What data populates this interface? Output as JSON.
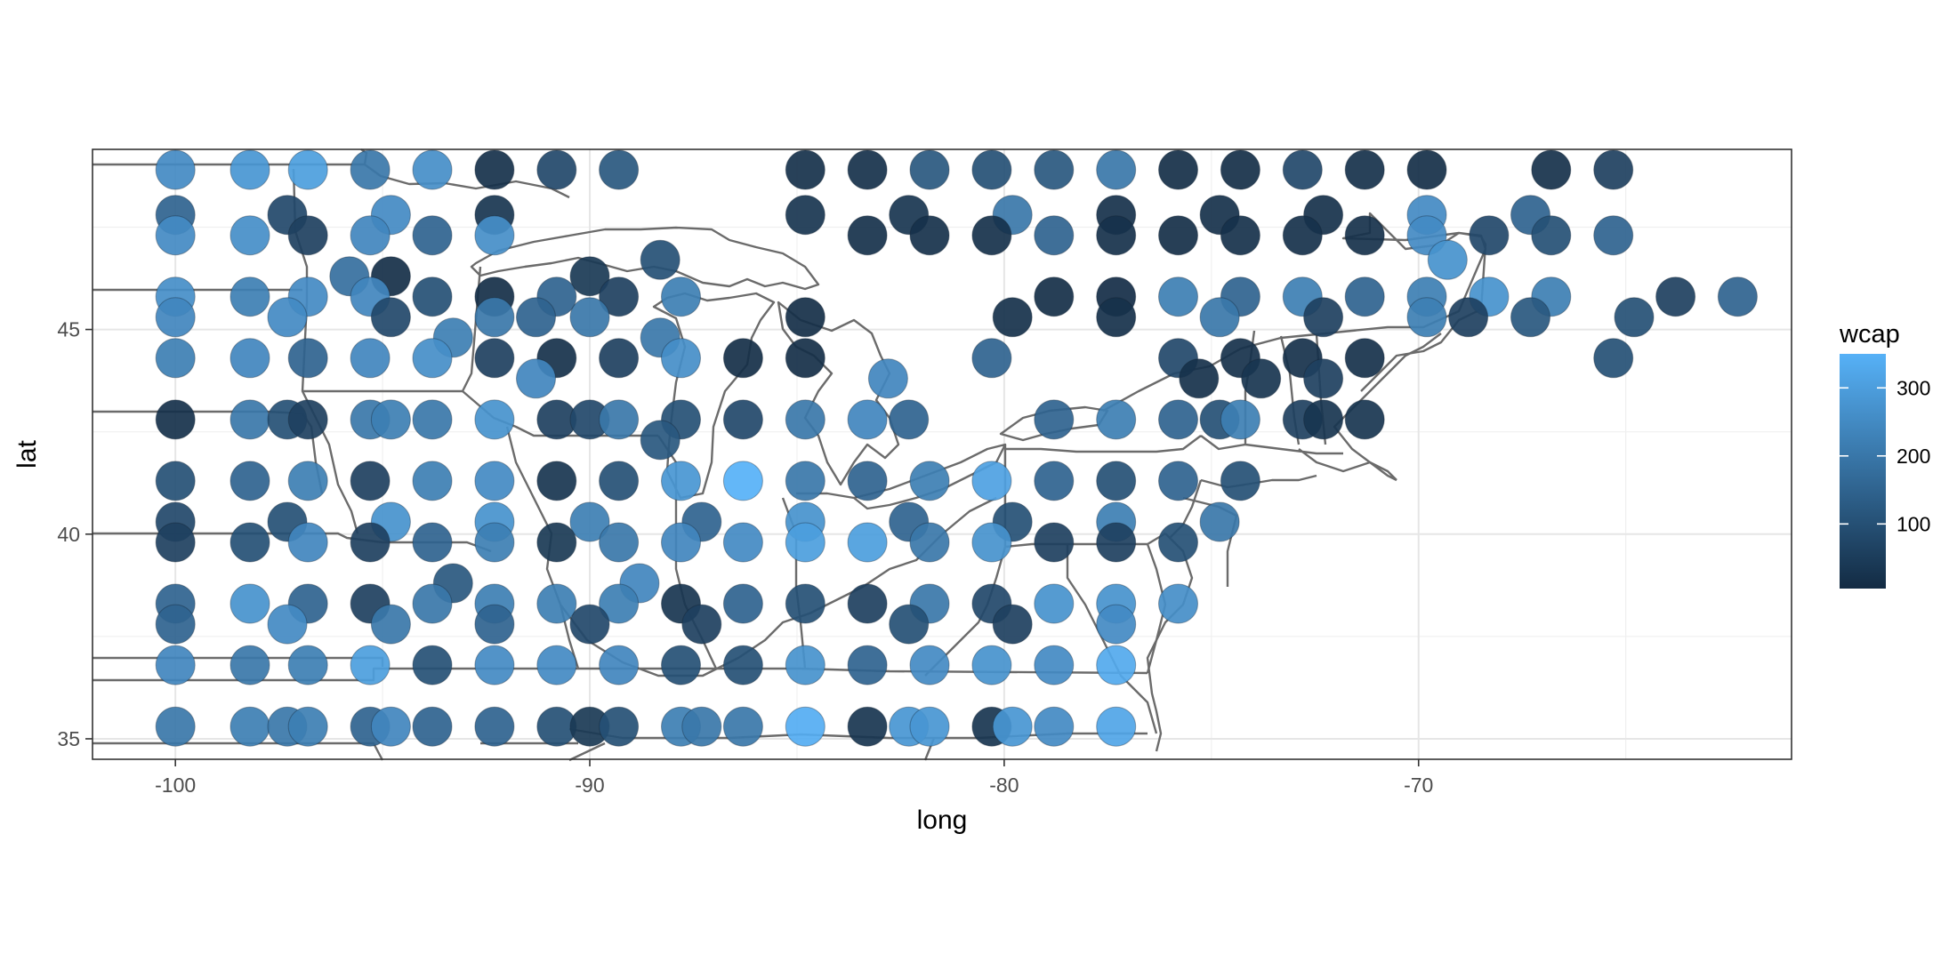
{
  "chart_data": {
    "type": "scatter",
    "title": "",
    "xlabel": "long",
    "ylabel": "lat",
    "xlim": [
      -102,
      -61
    ],
    "ylim": [
      34.5,
      49.4
    ],
    "x_ticks": [
      -100,
      -90,
      -80,
      -70
    ],
    "x_tick_labels": [
      "-100",
      "-90",
      "-80",
      "-70"
    ],
    "y_ticks": [
      35,
      40,
      45
    ],
    "y_tick_labels": [
      "35",
      "40",
      "45"
    ],
    "grid": true,
    "legend": {
      "title": "wcap",
      "position": "right",
      "type": "colorbar",
      "range": [
        5,
        350
      ],
      "ticks": [
        100,
        200,
        300
      ],
      "tick_labels": [
        "100",
        "200",
        "300"
      ],
      "color_low": "#132B43",
      "color_high": "#56B1F7"
    },
    "point_columns": [
      "long",
      "lat",
      "wcap"
    ],
    "points": [
      [
        -100.0,
        48.9,
        250
      ],
      [
        -98.2,
        48.9,
        280
      ],
      [
        -96.8,
        48.9,
        300
      ],
      [
        -95.3,
        48.9,
        200
      ],
      [
        -93.8,
        48.9,
        260
      ],
      [
        -92.3,
        48.9,
        20
      ],
      [
        -90.8,
        48.9,
        80
      ],
      [
        -89.3,
        48.9,
        120
      ],
      [
        -84.8,
        48.9,
        20
      ],
      [
        -83.3,
        48.9,
        20
      ],
      [
        -81.8,
        48.9,
        120
      ],
      [
        -80.3,
        48.9,
        100
      ],
      [
        -78.8,
        48.9,
        120
      ],
      [
        -77.3,
        48.9,
        200
      ],
      [
        -75.8,
        48.9,
        15
      ],
      [
        -74.3,
        48.9,
        15
      ],
      [
        -72.8,
        48.9,
        80
      ],
      [
        -71.3,
        48.9,
        20
      ],
      [
        -69.8,
        48.9,
        15
      ],
      [
        -66.8,
        48.9,
        20
      ],
      [
        -65.3,
        48.9,
        60
      ],
      [
        -100.0,
        47.8,
        150
      ],
      [
        -97.3,
        47.8,
        80
      ],
      [
        -94.8,
        47.8,
        250
      ],
      [
        -92.3,
        47.8,
        30
      ],
      [
        -84.8,
        47.8,
        30
      ],
      [
        -82.3,
        47.8,
        30
      ],
      [
        -79.8,
        47.8,
        200
      ],
      [
        -77.3,
        47.8,
        20
      ],
      [
        -74.8,
        47.8,
        20
      ],
      [
        -72.3,
        47.8,
        20
      ],
      [
        -69.8,
        47.8,
        250
      ],
      [
        -67.3,
        47.8,
        150
      ],
      [
        -100.0,
        47.3,
        250
      ],
      [
        -98.2,
        47.3,
        260
      ],
      [
        -96.8,
        47.3,
        60
      ],
      [
        -95.3,
        47.3,
        240
      ],
      [
        -93.8,
        47.3,
        150
      ],
      [
        -92.3,
        47.3,
        260
      ],
      [
        -83.3,
        47.3,
        20
      ],
      [
        -81.8,
        47.3,
        20
      ],
      [
        -80.3,
        47.3,
        20
      ],
      [
        -78.8,
        47.3,
        150
      ],
      [
        -77.3,
        47.3,
        20
      ],
      [
        -75.8,
        47.3,
        15
      ],
      [
        -74.3,
        47.3,
        20
      ],
      [
        -72.8,
        47.3,
        20
      ],
      [
        -71.3,
        47.3,
        20
      ],
      [
        -69.8,
        47.3,
        250
      ],
      [
        -68.3,
        47.3,
        80
      ],
      [
        -66.8,
        47.3,
        100
      ],
      [
        -65.3,
        47.3,
        150
      ],
      [
        -88.3,
        46.7,
        100
      ],
      [
        -69.3,
        46.7,
        270
      ],
      [
        -95.8,
        46.3,
        180
      ],
      [
        -94.8,
        46.3,
        15
      ],
      [
        -90.0,
        46.3,
        40
      ],
      [
        -100.0,
        45.8,
        260
      ],
      [
        -98.2,
        45.8,
        220
      ],
      [
        -96.8,
        45.8,
        250
      ],
      [
        -95.3,
        45.8,
        240
      ],
      [
        -93.8,
        45.8,
        100
      ],
      [
        -92.3,
        45.8,
        15
      ],
      [
        -90.8,
        45.8,
        150
      ],
      [
        -89.3,
        45.8,
        60
      ],
      [
        -87.8,
        45.8,
        220
      ],
      [
        -78.8,
        45.8,
        15
      ],
      [
        -77.3,
        45.8,
        10
      ],
      [
        -75.8,
        45.8,
        220
      ],
      [
        -74.3,
        45.8,
        150
      ],
      [
        -72.8,
        45.8,
        220
      ],
      [
        -71.3,
        45.8,
        150
      ],
      [
        -69.8,
        45.8,
        220
      ],
      [
        -68.3,
        45.8,
        270
      ],
      [
        -66.8,
        45.8,
        220
      ],
      [
        -63.8,
        45.8,
        60
      ],
      [
        -62.3,
        45.8,
        150
      ],
      [
        -100.0,
        45.3,
        240
      ],
      [
        -97.3,
        45.3,
        250
      ],
      [
        -94.8,
        45.3,
        80
      ],
      [
        -92.3,
        45.3,
        200
      ],
      [
        -91.3,
        45.3,
        150
      ],
      [
        -90.0,
        45.3,
        200
      ],
      [
        -84.8,
        45.3,
        15
      ],
      [
        -79.8,
        45.3,
        20
      ],
      [
        -77.3,
        45.3,
        20
      ],
      [
        -74.8,
        45.3,
        200
      ],
      [
        -72.3,
        45.3,
        60
      ],
      [
        -69.8,
        45.3,
        220
      ],
      [
        -68.8,
        45.3,
        60
      ],
      [
        -67.3,
        45.3,
        120
      ],
      [
        -64.8,
        45.3,
        100
      ],
      [
        -93.3,
        44.8,
        220
      ],
      [
        -88.3,
        44.8,
        200
      ],
      [
        -100.0,
        44.3,
        220
      ],
      [
        -98.2,
        44.3,
        240
      ],
      [
        -96.8,
        44.3,
        150
      ],
      [
        -95.3,
        44.3,
        240
      ],
      [
        -93.8,
        44.3,
        260
      ],
      [
        -92.3,
        44.3,
        60
      ],
      [
        -90.8,
        44.3,
        20
      ],
      [
        -89.3,
        44.3,
        60
      ],
      [
        -87.8,
        44.3,
        260
      ],
      [
        -86.3,
        44.3,
        15
      ],
      [
        -84.8,
        44.3,
        15
      ],
      [
        -80.3,
        44.3,
        150
      ],
      [
        -75.8,
        44.3,
        80
      ],
      [
        -74.3,
        44.3,
        20
      ],
      [
        -72.8,
        44.3,
        20
      ],
      [
        -71.3,
        44.3,
        20
      ],
      [
        -65.3,
        44.3,
        100
      ],
      [
        -91.3,
        43.8,
        240
      ],
      [
        -82.8,
        43.8,
        240
      ],
      [
        -75.3,
        43.8,
        20
      ],
      [
        -73.8,
        43.8,
        30
      ],
      [
        -72.3,
        43.8,
        60
      ],
      [
        -100.0,
        42.8,
        20
      ],
      [
        -98.2,
        42.8,
        200
      ],
      [
        -97.3,
        42.8,
        100
      ],
      [
        -96.8,
        42.8,
        60
      ],
      [
        -95.3,
        42.8,
        200
      ],
      [
        -94.8,
        42.8,
        220
      ],
      [
        -93.8,
        42.8,
        200
      ],
      [
        -92.3,
        42.8,
        270
      ],
      [
        -90.8,
        42.8,
        60
      ],
      [
        -90.0,
        42.8,
        80
      ],
      [
        -89.3,
        42.8,
        200
      ],
      [
        -87.8,
        42.8,
        100
      ],
      [
        -86.3,
        42.8,
        80
      ],
      [
        -84.8,
        42.8,
        200
      ],
      [
        -83.3,
        42.8,
        240
      ],
      [
        -82.3,
        42.8,
        150
      ],
      [
        -78.8,
        42.8,
        150
      ],
      [
        -77.3,
        42.8,
        220
      ],
      [
        -75.8,
        42.8,
        150
      ],
      [
        -74.8,
        42.8,
        100
      ],
      [
        -74.3,
        42.8,
        220
      ],
      [
        -72.8,
        42.8,
        60
      ],
      [
        -72.3,
        42.8,
        30
      ],
      [
        -71.3,
        42.8,
        30
      ],
      [
        -88.3,
        42.3,
        120
      ],
      [
        -100.0,
        41.3,
        100
      ],
      [
        -98.2,
        41.3,
        150
      ],
      [
        -96.8,
        41.3,
        220
      ],
      [
        -95.3,
        41.3,
        60
      ],
      [
        -93.8,
        41.3,
        220
      ],
      [
        -92.3,
        41.3,
        250
      ],
      [
        -90.8,
        41.3,
        30
      ],
      [
        -89.3,
        41.3,
        100
      ],
      [
        -87.8,
        41.3,
        280
      ],
      [
        -86.3,
        41.3,
        350
      ],
      [
        -84.8,
        41.3,
        200
      ],
      [
        -83.3,
        41.3,
        150
      ],
      [
        -81.8,
        41.3,
        220
      ],
      [
        -80.3,
        41.3,
        310
      ],
      [
        -78.8,
        41.3,
        150
      ],
      [
        -77.3,
        41.3,
        100
      ],
      [
        -75.8,
        41.3,
        150
      ],
      [
        -74.3,
        41.3,
        100
      ],
      [
        -100.0,
        40.3,
        80
      ],
      [
        -97.3,
        40.3,
        100
      ],
      [
        -94.8,
        40.3,
        270
      ],
      [
        -92.3,
        40.3,
        270
      ],
      [
        -90.0,
        40.3,
        220
      ],
      [
        -87.3,
        40.3,
        150
      ],
      [
        -84.8,
        40.3,
        270
      ],
      [
        -82.3,
        40.3,
        150
      ],
      [
        -79.8,
        40.3,
        100
      ],
      [
        -77.3,
        40.3,
        220
      ],
      [
        -74.8,
        40.3,
        200
      ],
      [
        -100.0,
        39.8,
        60
      ],
      [
        -98.2,
        39.8,
        100
      ],
      [
        -96.8,
        39.8,
        240
      ],
      [
        -95.3,
        39.8,
        60
      ],
      [
        -93.8,
        39.8,
        150
      ],
      [
        -92.3,
        39.8,
        220
      ],
      [
        -90.8,
        39.8,
        40
      ],
      [
        -89.3,
        39.8,
        200
      ],
      [
        -87.8,
        39.8,
        240
      ],
      [
        -86.3,
        39.8,
        250
      ],
      [
        -84.8,
        39.8,
        300
      ],
      [
        -83.3,
        39.8,
        300
      ],
      [
        -81.8,
        39.8,
        200
      ],
      [
        -80.3,
        39.8,
        270
      ],
      [
        -78.8,
        39.8,
        60
      ],
      [
        -77.3,
        39.8,
        60
      ],
      [
        -75.8,
        39.8,
        100
      ],
      [
        -93.3,
        38.8,
        120
      ],
      [
        -88.8,
        38.8,
        240
      ],
      [
        -100.0,
        38.3,
        150
      ],
      [
        -98.2,
        38.3,
        270
      ],
      [
        -96.8,
        38.3,
        150
      ],
      [
        -95.3,
        38.3,
        60
      ],
      [
        -93.8,
        38.3,
        200
      ],
      [
        -92.3,
        38.3,
        220
      ],
      [
        -90.8,
        38.3,
        220
      ],
      [
        -89.3,
        38.3,
        220
      ],
      [
        -87.8,
        38.3,
        30
      ],
      [
        -86.3,
        38.3,
        150
      ],
      [
        -84.8,
        38.3,
        100
      ],
      [
        -83.3,
        38.3,
        60
      ],
      [
        -81.8,
        38.3,
        200
      ],
      [
        -80.3,
        38.3,
        80
      ],
      [
        -78.8,
        38.3,
        270
      ],
      [
        -77.3,
        38.3,
        270
      ],
      [
        -75.8,
        38.3,
        260
      ],
      [
        -100.0,
        37.8,
        150
      ],
      [
        -97.3,
        37.8,
        250
      ],
      [
        -94.8,
        37.8,
        200
      ],
      [
        -92.3,
        37.8,
        150
      ],
      [
        -90.0,
        37.8,
        80
      ],
      [
        -87.3,
        37.8,
        60
      ],
      [
        -82.3,
        37.8,
        100
      ],
      [
        -79.8,
        37.8,
        60
      ],
      [
        -77.3,
        37.8,
        250
      ],
      [
        -100.0,
        36.8,
        240
      ],
      [
        -98.2,
        36.8,
        200
      ],
      [
        -96.8,
        36.8,
        220
      ],
      [
        -95.3,
        36.8,
        300
      ],
      [
        -93.8,
        36.8,
        100
      ],
      [
        -92.3,
        36.8,
        250
      ],
      [
        -90.8,
        36.8,
        250
      ],
      [
        -89.3,
        36.8,
        240
      ],
      [
        -87.8,
        36.8,
        100
      ],
      [
        -86.3,
        36.8,
        100
      ],
      [
        -84.8,
        36.8,
        270
      ],
      [
        -83.3,
        36.8,
        150
      ],
      [
        -81.8,
        36.8,
        250
      ],
      [
        -80.3,
        36.8,
        270
      ],
      [
        -78.8,
        36.8,
        250
      ],
      [
        -77.3,
        36.8,
        330
      ],
      [
        -100.0,
        35.3,
        200
      ],
      [
        -98.2,
        35.3,
        220
      ],
      [
        -97.3,
        35.3,
        200
      ],
      [
        -96.8,
        35.3,
        220
      ],
      [
        -95.3,
        35.3,
        150
      ],
      [
        -94.8,
        35.3,
        240
      ],
      [
        -93.8,
        35.3,
        150
      ],
      [
        -92.3,
        35.3,
        150
      ],
      [
        -90.8,
        35.3,
        100
      ],
      [
        -90.0,
        35.3,
        40
      ],
      [
        -89.3,
        35.3,
        100
      ],
      [
        -87.8,
        35.3,
        220
      ],
      [
        -87.3,
        35.3,
        200
      ],
      [
        -86.3,
        35.3,
        200
      ],
      [
        -84.8,
        35.3,
        340
      ],
      [
        -83.3,
        35.3,
        30
      ],
      [
        -82.3,
        35.3,
        280
      ],
      [
        -81.8,
        35.3,
        280
      ],
      [
        -80.3,
        35.3,
        30
      ],
      [
        -79.8,
        35.3,
        280
      ],
      [
        -78.8,
        35.3,
        250
      ],
      [
        -77.3,
        35.3,
        320
      ]
    ]
  }
}
